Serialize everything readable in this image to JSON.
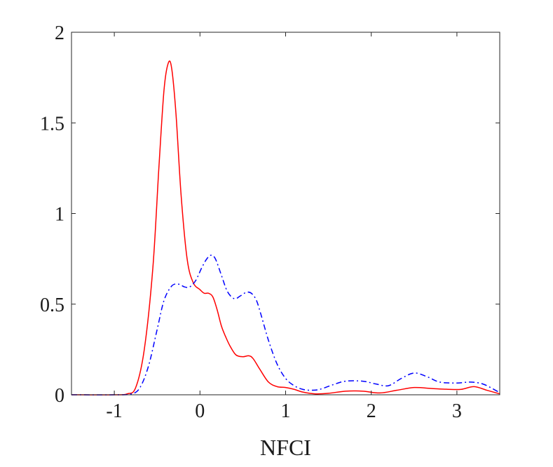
{
  "chart_data": {
    "type": "line",
    "title": "",
    "xlabel": "NFCI",
    "ylabel": "",
    "xlim": [
      -1.5,
      3.5
    ],
    "ylim": [
      0,
      2
    ],
    "xticks": [
      -1,
      0,
      1,
      2,
      3
    ],
    "xtick_labels": [
      "-1",
      "0",
      "1",
      "2",
      "3"
    ],
    "yticks": [
      0,
      0.5,
      1,
      1.5,
      2
    ],
    "ytick_labels": [
      "0",
      "0.5",
      "1",
      "1.5",
      "2"
    ],
    "grid": false,
    "legend": false,
    "series": [
      {
        "color": "#ff0000",
        "style": "solid",
        "points": [
          [
            -1.5,
            0
          ],
          [
            -1.0,
            0
          ],
          [
            -0.85,
            0.005
          ],
          [
            -0.75,
            0.04
          ],
          [
            -0.65,
            0.25
          ],
          [
            -0.55,
            0.7
          ],
          [
            -0.48,
            1.25
          ],
          [
            -0.42,
            1.68
          ],
          [
            -0.37,
            1.83
          ],
          [
            -0.33,
            1.8
          ],
          [
            -0.28,
            1.55
          ],
          [
            -0.22,
            1.1
          ],
          [
            -0.15,
            0.75
          ],
          [
            -0.08,
            0.62
          ],
          [
            0.0,
            0.58
          ],
          [
            0.05,
            0.56
          ],
          [
            0.1,
            0.56
          ],
          [
            0.15,
            0.54
          ],
          [
            0.2,
            0.47
          ],
          [
            0.25,
            0.38
          ],
          [
            0.3,
            0.32
          ],
          [
            0.35,
            0.27
          ],
          [
            0.42,
            0.22
          ],
          [
            0.5,
            0.21
          ],
          [
            0.57,
            0.215
          ],
          [
            0.62,
            0.2
          ],
          [
            0.7,
            0.14
          ],
          [
            0.8,
            0.07
          ],
          [
            0.9,
            0.045
          ],
          [
            1.0,
            0.04
          ],
          [
            1.1,
            0.03
          ],
          [
            1.2,
            0.015
          ],
          [
            1.35,
            0.005
          ],
          [
            1.5,
            0.008
          ],
          [
            1.7,
            0.02
          ],
          [
            1.9,
            0.02
          ],
          [
            2.1,
            0.01
          ],
          [
            2.3,
            0.025
          ],
          [
            2.5,
            0.04
          ],
          [
            2.7,
            0.035
          ],
          [
            2.9,
            0.03
          ],
          [
            3.05,
            0.03
          ],
          [
            3.2,
            0.045
          ],
          [
            3.35,
            0.025
          ],
          [
            3.5,
            0.005
          ]
        ]
      },
      {
        "color": "#0000ff",
        "style": "dashdot",
        "points": [
          [
            -1.5,
            0
          ],
          [
            -1.0,
            0
          ],
          [
            -0.8,
            0.005
          ],
          [
            -0.7,
            0.04
          ],
          [
            -0.6,
            0.16
          ],
          [
            -0.5,
            0.36
          ],
          [
            -0.42,
            0.52
          ],
          [
            -0.33,
            0.6
          ],
          [
            -0.25,
            0.61
          ],
          [
            -0.18,
            0.595
          ],
          [
            -0.12,
            0.595
          ],
          [
            -0.05,
            0.63
          ],
          [
            0.02,
            0.7
          ],
          [
            0.08,
            0.75
          ],
          [
            0.13,
            0.77
          ],
          [
            0.18,
            0.75
          ],
          [
            0.25,
            0.66
          ],
          [
            0.32,
            0.57
          ],
          [
            0.4,
            0.53
          ],
          [
            0.47,
            0.545
          ],
          [
            0.54,
            0.565
          ],
          [
            0.6,
            0.56
          ],
          [
            0.66,
            0.52
          ],
          [
            0.72,
            0.43
          ],
          [
            0.8,
            0.3
          ],
          [
            0.9,
            0.17
          ],
          [
            1.0,
            0.09
          ],
          [
            1.1,
            0.05
          ],
          [
            1.2,
            0.03
          ],
          [
            1.3,
            0.025
          ],
          [
            1.4,
            0.03
          ],
          [
            1.55,
            0.055
          ],
          [
            1.7,
            0.075
          ],
          [
            1.9,
            0.075
          ],
          [
            2.05,
            0.06
          ],
          [
            2.2,
            0.05
          ],
          [
            2.35,
            0.09
          ],
          [
            2.5,
            0.12
          ],
          [
            2.65,
            0.1
          ],
          [
            2.8,
            0.07
          ],
          [
            3.0,
            0.065
          ],
          [
            3.15,
            0.07
          ],
          [
            3.3,
            0.06
          ],
          [
            3.45,
            0.025
          ],
          [
            3.5,
            0.01
          ]
        ]
      }
    ]
  }
}
